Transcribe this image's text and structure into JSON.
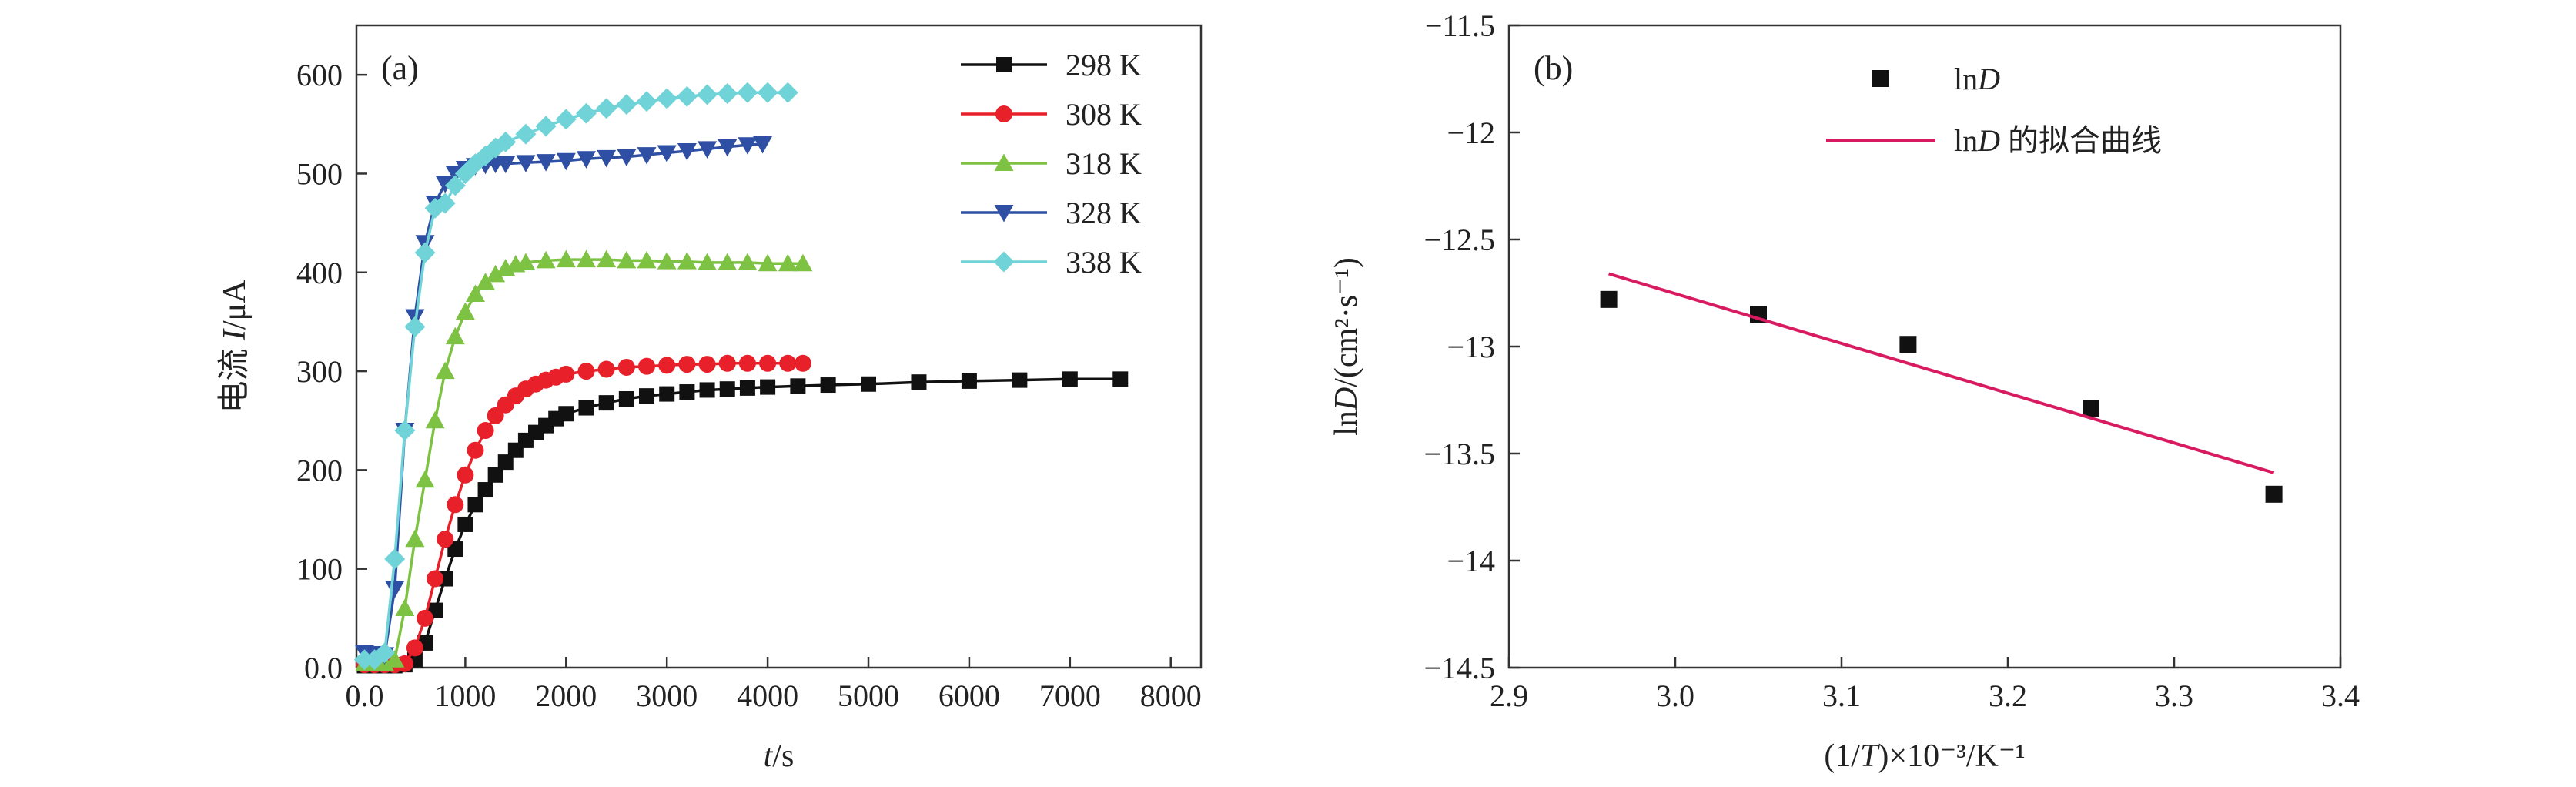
{
  "chart_data": [
    {
      "panel": "(a)",
      "type": "line",
      "xlabel": {
        "italic": "t",
        "rest": "/s"
      },
      "ylabel": {
        "prefix": "电流 ",
        "italic": "I",
        "rest": "/μA"
      },
      "xlim": [
        -80,
        8300
      ],
      "ylim": [
        0,
        650
      ],
      "xticks": [
        0,
        1000,
        2000,
        3000,
        4000,
        5000,
        6000,
        7000,
        8000
      ],
      "yticks": [
        0,
        100,
        200,
        300,
        400,
        500,
        600
      ],
      "legend_position": "top-right",
      "series": [
        {
          "name": "298 K",
          "color": "#111111",
          "marker": "square",
          "points": [
            [
              0,
              2
            ],
            [
              100,
              2
            ],
            [
              200,
              2
            ],
            [
              300,
              2
            ],
            [
              400,
              3
            ],
            [
              500,
              8
            ],
            [
              600,
              25
            ],
            [
              700,
              58
            ],
            [
              800,
              90
            ],
            [
              900,
              120
            ],
            [
              1000,
              145
            ],
            [
              1100,
              165
            ],
            [
              1200,
              180
            ],
            [
              1300,
              195
            ],
            [
              1400,
              208
            ],
            [
              1500,
              220
            ],
            [
              1600,
              230
            ],
            [
              1700,
              238
            ],
            [
              1800,
              245
            ],
            [
              1900,
              252
            ],
            [
              2000,
              257
            ],
            [
              2200,
              263
            ],
            [
              2400,
              268
            ],
            [
              2600,
              272
            ],
            [
              2800,
              275
            ],
            [
              3000,
              277
            ],
            [
              3200,
              279
            ],
            [
              3400,
              281
            ],
            [
              3600,
              282
            ],
            [
              3800,
              283
            ],
            [
              4000,
              284
            ],
            [
              4300,
              285
            ],
            [
              4600,
              286
            ],
            [
              5000,
              287
            ],
            [
              5500,
              289
            ],
            [
              6000,
              290
            ],
            [
              6500,
              291
            ],
            [
              7000,
              292
            ],
            [
              7500,
              292
            ]
          ]
        },
        {
          "name": "308 K",
          "color": "#e8202a",
          "marker": "circle",
          "points": [
            [
              0,
              3
            ],
            [
              100,
              3
            ],
            [
              200,
              3
            ],
            [
              300,
              3
            ],
            [
              400,
              4
            ],
            [
              500,
              20
            ],
            [
              600,
              50
            ],
            [
              700,
              90
            ],
            [
              800,
              130
            ],
            [
              900,
              165
            ],
            [
              1000,
              195
            ],
            [
              1100,
              220
            ],
            [
              1200,
              240
            ],
            [
              1300,
              255
            ],
            [
              1400,
              266
            ],
            [
              1500,
              275
            ],
            [
              1600,
              282
            ],
            [
              1700,
              287
            ],
            [
              1800,
              291
            ],
            [
              1900,
              294
            ],
            [
              2000,
              297
            ],
            [
              2200,
              300
            ],
            [
              2400,
              302
            ],
            [
              2600,
              304
            ],
            [
              2800,
              305
            ],
            [
              3000,
              306
            ],
            [
              3200,
              307
            ],
            [
              3400,
              307
            ],
            [
              3600,
              308
            ],
            [
              3800,
              308
            ],
            [
              4000,
              308
            ],
            [
              4200,
              308
            ],
            [
              4350,
              308
            ]
          ]
        },
        {
          "name": "318 K",
          "color": "#7dc242",
          "marker": "triangle-up",
          "points": [
            [
              0,
              4
            ],
            [
              100,
              4
            ],
            [
              200,
              4
            ],
            [
              300,
              8
            ],
            [
              400,
              60
            ],
            [
              500,
              130
            ],
            [
              600,
              190
            ],
            [
              700,
              250
            ],
            [
              800,
              300
            ],
            [
              900,
              335
            ],
            [
              1000,
              360
            ],
            [
              1100,
              378
            ],
            [
              1200,
              390
            ],
            [
              1300,
              398
            ],
            [
              1400,
              404
            ],
            [
              1500,
              408
            ],
            [
              1600,
              410
            ],
            [
              1800,
              412
            ],
            [
              2000,
              413
            ],
            [
              2200,
              413
            ],
            [
              2400,
              413
            ],
            [
              2600,
              412
            ],
            [
              2800,
              412
            ],
            [
              3000,
              411
            ],
            [
              3200,
              411
            ],
            [
              3400,
              410
            ],
            [
              3600,
              410
            ],
            [
              3800,
              410
            ],
            [
              4000,
              409
            ],
            [
              4200,
              409
            ],
            [
              4350,
              409
            ]
          ]
        },
        {
          "name": "328 K",
          "color": "#2e4fa3",
          "marker": "triangle-down",
          "points": [
            [
              0,
              15
            ],
            [
              100,
              14
            ],
            [
              200,
              13
            ],
            [
              300,
              80
            ],
            [
              400,
              240
            ],
            [
              500,
              355
            ],
            [
              600,
              430
            ],
            [
              700,
              470
            ],
            [
              800,
              490
            ],
            [
              900,
              500
            ],
            [
              1000,
              505
            ],
            [
              1100,
              508
            ],
            [
              1200,
              509
            ],
            [
              1300,
              510
            ],
            [
              1400,
              510
            ],
            [
              1600,
              511
            ],
            [
              1800,
              512
            ],
            [
              2000,
              513
            ],
            [
              2200,
              515
            ],
            [
              2400,
              516
            ],
            [
              2600,
              517
            ],
            [
              2800,
              519
            ],
            [
              3000,
              521
            ],
            [
              3200,
              523
            ],
            [
              3400,
              525
            ],
            [
              3600,
              527
            ],
            [
              3800,
              529
            ],
            [
              3950,
              530
            ]
          ]
        },
        {
          "name": "338 K",
          "color": "#6fd3d7",
          "marker": "diamond",
          "points": [
            [
              0,
              8
            ],
            [
              100,
              8
            ],
            [
              200,
              15
            ],
            [
              300,
              110
            ],
            [
              400,
              240
            ],
            [
              500,
              345
            ],
            [
              600,
              420
            ],
            [
              700,
              465
            ],
            [
              800,
              470
            ],
            [
              900,
              488
            ],
            [
              1000,
              500
            ],
            [
              1100,
              510
            ],
            [
              1200,
              518
            ],
            [
              1300,
              526
            ],
            [
              1400,
              532
            ],
            [
              1600,
              540
            ],
            [
              1800,
              548
            ],
            [
              2000,
              555
            ],
            [
              2200,
              561
            ],
            [
              2400,
              566
            ],
            [
              2600,
              570
            ],
            [
              2800,
              573
            ],
            [
              3000,
              576
            ],
            [
              3200,
              578
            ],
            [
              3400,
              580
            ],
            [
              3600,
              581
            ],
            [
              3800,
              582
            ],
            [
              4000,
              582
            ],
            [
              4200,
              582
            ]
          ]
        }
      ]
    },
    {
      "panel": "(b)",
      "type": "scatter",
      "xlabel": {
        "prefix": "(1/",
        "italic": "T",
        "rest": ")×10⁻³/K⁻¹"
      },
      "ylabel": {
        "prefix": "ln",
        "italic": "D",
        "rest": "/(cm²·s⁻¹)"
      },
      "xlim": [
        2.9,
        3.4
      ],
      "ylim": [
        -14.5,
        -11.5
      ],
      "xticks": [
        2.9,
        3.0,
        3.1,
        3.2,
        3.3,
        3.4
      ],
      "yticks": [
        -11.5,
        -12.0,
        -12.5,
        -13.0,
        -13.5,
        -14.0,
        -14.5
      ],
      "legend_position": "top-right",
      "series": [
        {
          "name": {
            "prefix": "ln",
            "italic": "D",
            "rest": ""
          },
          "color": "#111111",
          "marker": "square",
          "points": [
            [
              2.96,
              -12.78
            ],
            [
              3.05,
              -12.85
            ],
            [
              3.14,
              -12.99
            ],
            [
              3.25,
              -13.29
            ],
            [
              3.36,
              -13.69
            ]
          ]
        },
        {
          "name": {
            "prefix": "ln",
            "italic": "D",
            "rest": " 的拟合曲线"
          },
          "color": "#d81b60",
          "marker": "none",
          "points": [
            [
              2.96,
              -12.66
            ],
            [
              3.36,
              -13.59
            ]
          ]
        }
      ]
    }
  ]
}
